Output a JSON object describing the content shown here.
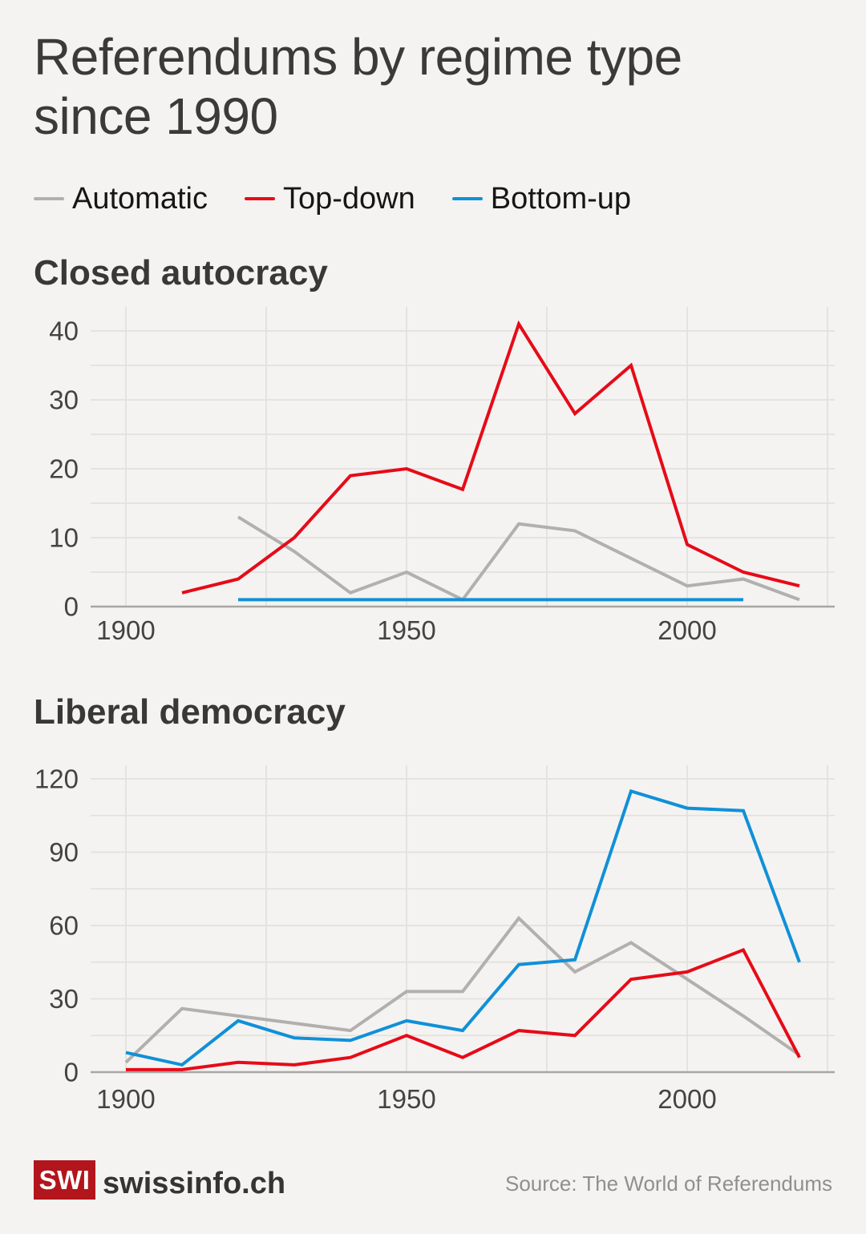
{
  "title": "Referendums by regime type since 1990",
  "legend": [
    {
      "label": "Automatic",
      "color": "#b1b0ae"
    },
    {
      "label": "Top-down",
      "color": "#e60b18"
    },
    {
      "label": "Bottom-up",
      "color": "#1090d8"
    }
  ],
  "colors": {
    "background": "#f4f3f1",
    "gridline": "#e3e1dd",
    "axis_line": "#a8a6a3",
    "tick_label": "#434343"
  },
  "chart_data": [
    {
      "type": "line",
      "title": "Closed autocracy",
      "x": [
        1900,
        1910,
        1920,
        1930,
        1940,
        1950,
        1960,
        1970,
        1980,
        1990,
        2000,
        2010,
        2020
      ],
      "series": [
        {
          "name": "Automatic",
          "color": "#b1b0ae",
          "values": [
            null,
            null,
            13,
            8,
            2,
            5,
            1,
            12,
            11,
            7,
            3,
            4,
            1
          ]
        },
        {
          "name": "Top-down",
          "color": "#e60b18",
          "values": [
            null,
            2,
            4,
            10,
            19,
            20,
            17,
            41,
            28,
            35,
            9,
            5,
            3
          ]
        },
        {
          "name": "Bottom-up",
          "color": "#1090d8",
          "values": [
            null,
            null,
            1,
            1,
            1,
            1,
            1,
            1,
            1,
            1,
            1,
            1,
            null
          ]
        }
      ],
      "xlabel": "",
      "ylabel": "",
      "ylim": [
        0,
        44
      ],
      "yticks": [
        0,
        10,
        20,
        30,
        40
      ],
      "y_grid_interval": 5,
      "xticks": [
        1900,
        1950,
        2000
      ],
      "x_gridline_years": [
        1900,
        1925,
        1950,
        1975,
        2000,
        2025
      ],
      "xlim": [
        1894,
        2026
      ],
      "grid": true,
      "legend_position": "top"
    },
    {
      "type": "line",
      "title": "Liberal democracy",
      "x": [
        1900,
        1910,
        1920,
        1930,
        1940,
        1950,
        1960,
        1970,
        1980,
        1990,
        2000,
        2010,
        2020
      ],
      "series": [
        {
          "name": "Automatic",
          "color": "#b1b0ae",
          "values": [
            4,
            26,
            23,
            20,
            17,
            33,
            33,
            63,
            41,
            53,
            38,
            23,
            7
          ]
        },
        {
          "name": "Top-down",
          "color": "#e60b18",
          "values": [
            1,
            1,
            4,
            3,
            6,
            15,
            6,
            17,
            15,
            38,
            41,
            50,
            6
          ]
        },
        {
          "name": "Bottom-up",
          "color": "#1090d8",
          "values": [
            8,
            3,
            21,
            14,
            13,
            21,
            17,
            44,
            46,
            115,
            108,
            107,
            45
          ]
        }
      ],
      "xlabel": "",
      "ylabel": "",
      "ylim": [
        0,
        126
      ],
      "yticks": [
        0,
        30,
        60,
        90,
        120
      ],
      "y_grid_interval": 15,
      "xticks": [
        1900,
        1950,
        2000
      ],
      "x_gridline_years": [
        1900,
        1925,
        1950,
        1975,
        2000,
        2025
      ],
      "xlim": [
        1894,
        2026
      ],
      "grid": true,
      "legend_position": "top"
    }
  ],
  "footer": {
    "logo_text": "SWI",
    "brand": "swissinfo.ch",
    "source": "Source: The World of Referendums",
    "logo_color": "#b3151c"
  }
}
